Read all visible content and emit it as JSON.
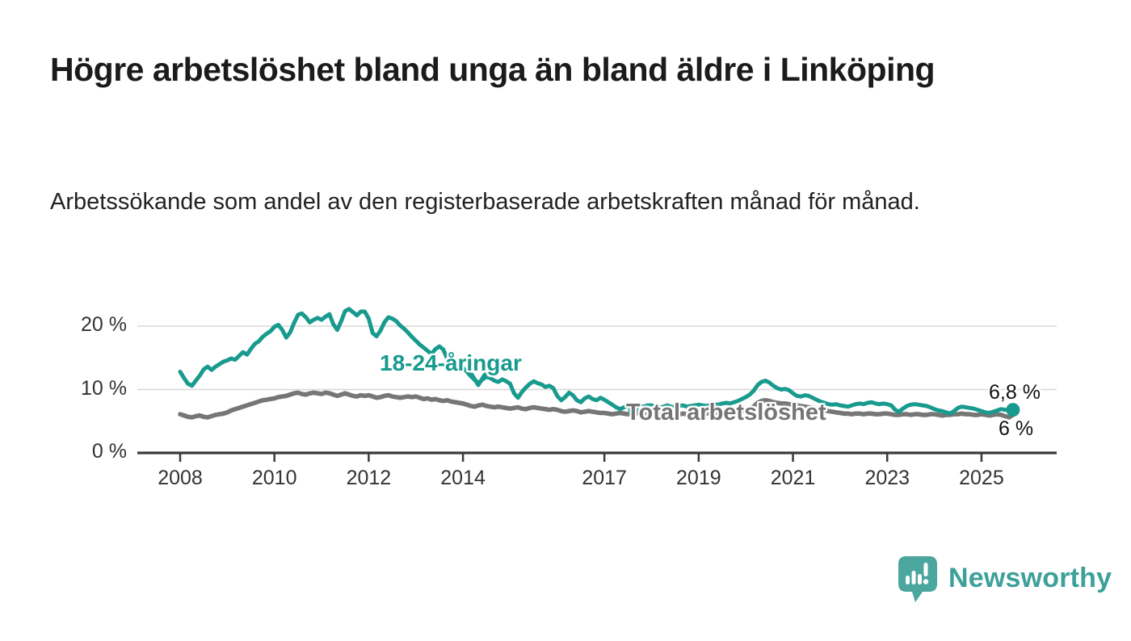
{
  "header": {
    "title": "Högre arbetslöshet bland unga än bland äldre i Linköping",
    "subtitle": "Arbetssökande som andel av den registerbaserade arbetskraften månad för månad."
  },
  "chart_data": {
    "type": "line",
    "unit": "%",
    "x_start_year": 2008,
    "points_per_year": 12,
    "ylim": [
      0,
      24
    ],
    "grid": "horizontal",
    "y_ticks": [
      {
        "value": 0,
        "label": "0 %"
      },
      {
        "value": 10,
        "label": "10 %"
      },
      {
        "value": 20,
        "label": "20 %"
      }
    ],
    "x_ticks": [
      2008,
      2010,
      2012,
      2014,
      2017,
      2019,
      2021,
      2023,
      2025
    ],
    "series": [
      {
        "name": "Total arbetslöshet",
        "color": "#767676",
        "end_label": "6 %",
        "values": [
          6.1,
          5.9,
          5.7,
          5.6,
          5.8,
          5.9,
          5.7,
          5.6,
          5.8,
          6.0,
          6.1,
          6.2,
          6.4,
          6.7,
          6.9,
          7.1,
          7.3,
          7.5,
          7.7,
          7.9,
          8.1,
          8.3,
          8.4,
          8.5,
          8.6,
          8.8,
          8.9,
          9.0,
          9.2,
          9.4,
          9.5,
          9.3,
          9.2,
          9.4,
          9.5,
          9.4,
          9.3,
          9.5,
          9.4,
          9.2,
          9.0,
          9.2,
          9.4,
          9.2,
          9.0,
          8.9,
          9.1,
          9.0,
          9.1,
          8.9,
          8.7,
          8.8,
          9.0,
          9.1,
          8.9,
          8.8,
          8.7,
          8.8,
          8.9,
          8.8,
          8.9,
          8.7,
          8.5,
          8.6,
          8.4,
          8.5,
          8.3,
          8.2,
          8.3,
          8.1,
          8.0,
          7.9,
          7.8,
          7.6,
          7.4,
          7.3,
          7.5,
          7.6,
          7.4,
          7.3,
          7.2,
          7.3,
          7.2,
          7.1,
          7.0,
          7.1,
          7.2,
          7.0,
          6.9,
          7.1,
          7.2,
          7.1,
          7.0,
          6.9,
          6.8,
          6.9,
          6.8,
          6.6,
          6.5,
          6.6,
          6.7,
          6.6,
          6.4,
          6.5,
          6.6,
          6.5,
          6.4,
          6.3,
          6.3,
          6.2,
          6.1,
          6.2,
          6.3,
          6.2,
          6.1,
          6.2,
          6.3,
          6.2,
          6.1,
          6.2,
          6.2,
          6.1,
          6.0,
          6.1,
          6.2,
          6.1,
          6.0,
          6.1,
          6.2,
          6.1,
          6.2,
          6.2,
          6.3,
          6.2,
          6.2,
          6.3,
          6.3,
          6.4,
          6.3,
          6.4,
          6.4,
          6.5,
          6.5,
          6.6,
          6.7,
          6.9,
          7.3,
          7.9,
          8.2,
          8.3,
          8.2,
          8.0,
          7.9,
          7.8,
          7.8,
          7.7,
          7.6,
          7.5,
          7.4,
          7.3,
          7.2,
          7.1,
          7.0,
          6.9,
          6.7,
          6.6,
          6.5,
          6.4,
          6.3,
          6.2,
          6.2,
          6.1,
          6.2,
          6.2,
          6.1,
          6.2,
          6.2,
          6.1,
          6.1,
          6.2,
          6.2,
          6.1,
          6.0,
          6.0,
          6.1,
          6.1,
          6.0,
          6.1,
          6.1,
          6.0,
          6.0,
          6.1,
          6.1,
          6.0,
          5.9,
          6.0,
          6.0,
          6.1,
          6.1,
          6.2,
          6.1,
          6.1,
          6.0,
          6.0,
          6.1,
          6.0,
          5.9,
          6.0,
          6.1,
          6.0,
          5.8,
          5.6,
          6.0
        ]
      },
      {
        "name": "18-24-åringar",
        "color": "#189a8e",
        "end_label": "6,8 %",
        "values": [
          12.8,
          11.8,
          10.9,
          10.6,
          11.4,
          12.2,
          13.2,
          13.6,
          13.1,
          13.6,
          14.0,
          14.4,
          14.6,
          14.9,
          14.7,
          15.3,
          15.9,
          15.5,
          16.4,
          17.2,
          17.6,
          18.3,
          18.8,
          19.2,
          19.9,
          20.2,
          19.4,
          18.2,
          19.0,
          20.5,
          21.8,
          22.0,
          21.4,
          20.6,
          21.0,
          21.3,
          21.0,
          21.5,
          21.9,
          20.3,
          19.4,
          20.8,
          22.4,
          22.7,
          22.2,
          21.7,
          22.3,
          22.3,
          21.2,
          18.9,
          18.4,
          19.3,
          20.6,
          21.4,
          21.2,
          20.8,
          20.1,
          19.6,
          19.0,
          18.3,
          17.7,
          17.1,
          16.6,
          16.1,
          15.6,
          16.4,
          16.8,
          16.3,
          14.8,
          15.2,
          14.6,
          13.9,
          13.4,
          12.8,
          12.1,
          11.5,
          11.0,
          11.6,
          12.0,
          11.8,
          11.4,
          11.2,
          11.6,
          11.3,
          10.9,
          9.4,
          8.7,
          9.6,
          10.3,
          10.9,
          11.3,
          11.0,
          10.8,
          10.4,
          10.6,
          10.2,
          9.0,
          8.3,
          8.8,
          9.5,
          9.1,
          8.3,
          8.0,
          8.6,
          8.9,
          8.5,
          8.3,
          8.7,
          8.4,
          8.0,
          7.6,
          7.2,
          6.9,
          7.2,
          7.4,
          7.3,
          7.2,
          7.4,
          7.3,
          7.5,
          7.5,
          7.3,
          7.1,
          7.3,
          7.5,
          7.3,
          7.2,
          7.4,
          7.5,
          7.3,
          7.4,
          7.5,
          7.6,
          7.5,
          7.4,
          7.6,
          7.7,
          7.6,
          7.8,
          7.9,
          7.8,
          8.0,
          8.2,
          8.5,
          8.8,
          9.2,
          9.8,
          10.7,
          11.2,
          11.4,
          11.1,
          10.6,
          10.2,
          10.0,
          10.1,
          9.9,
          9.4,
          9.0,
          8.9,
          9.1,
          9.0,
          8.7,
          8.4,
          8.1,
          7.9,
          7.7,
          7.6,
          7.7,
          7.5,
          7.4,
          7.3,
          7.5,
          7.7,
          7.8,
          7.7,
          7.9,
          8.0,
          7.8,
          7.7,
          7.8,
          7.7,
          7.5,
          6.8,
          6.5,
          7.0,
          7.4,
          7.6,
          7.7,
          7.6,
          7.5,
          7.4,
          7.2,
          6.9,
          6.7,
          6.6,
          6.4,
          6.2,
          6.6,
          7.1,
          7.3,
          7.2,
          7.1,
          7.0,
          6.8,
          6.6,
          6.4,
          6.3,
          6.5,
          6.7,
          6.9,
          6.8,
          6.7,
          6.8
        ]
      }
    ]
  },
  "branding": {
    "logo_text": "Newsworthy",
    "logo_color": "#4ba6a0"
  }
}
